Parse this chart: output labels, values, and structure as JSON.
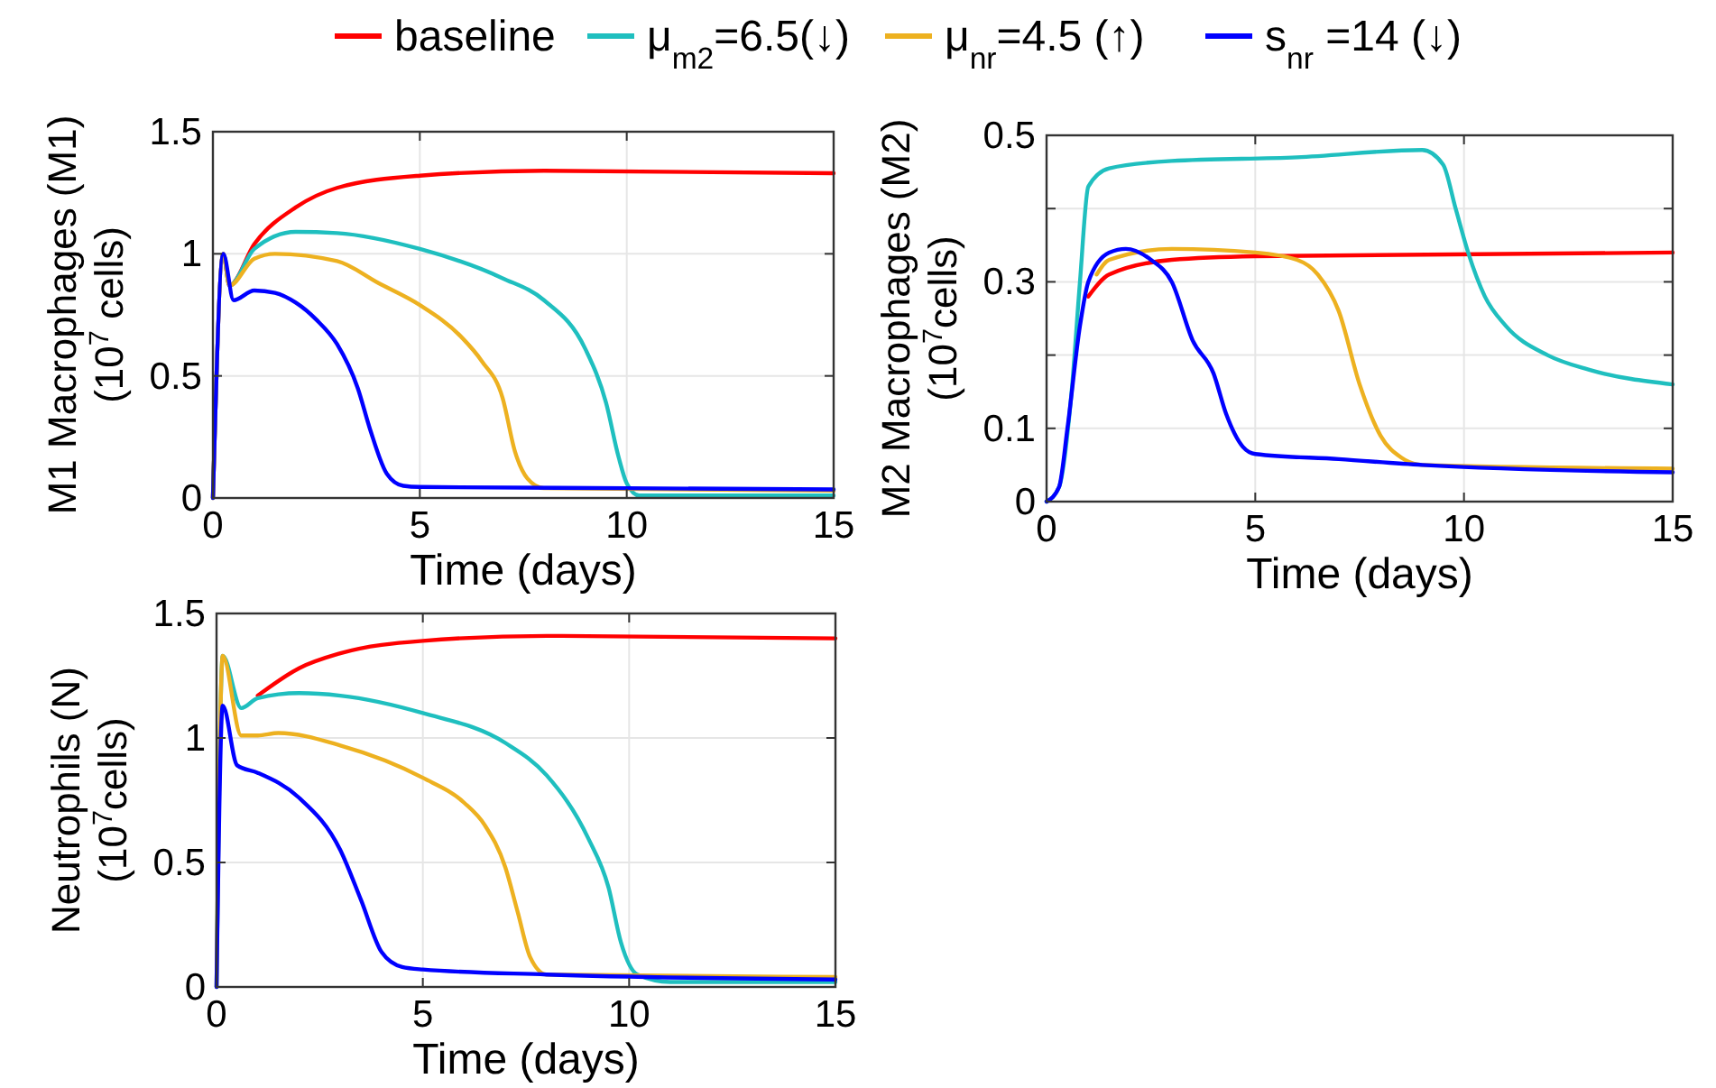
{
  "chart_data": [
    {
      "type": "line",
      "xlabel": "Time (days)",
      "ylabel": "M1 Macrophages (M1)\n(10$^{7}$ cells)",
      "xlim": [
        0,
        15
      ],
      "ylim": [
        0,
        1.5
      ],
      "xticks": [
        0,
        5,
        10,
        15
      ],
      "yticks": [
        0,
        0.5,
        1,
        1.5
      ],
      "grid": true,
      "legend": "top",
      "line_style": "solid",
      "marker": "none",
      "series": [
        {
          "name": "baseline",
          "color": "#ff0000",
          "x": [
            0,
            0.25,
            0.4,
            1,
            2,
            3,
            5,
            8,
            15
          ],
          "values": [
            0,
            1.0,
            0.87,
            1.04,
            1.19,
            1.27,
            1.32,
            1.34,
            1.33
          ]
        },
        {
          "name": "μ$_{m2}$=6.5(↓)",
          "color": "#1fbfbf",
          "x": [
            0,
            0.25,
            0.4,
            1,
            2,
            3,
            5,
            7,
            8,
            9,
            9.5,
            9.8,
            10,
            10.3,
            15
          ],
          "values": [
            0,
            1.0,
            0.87,
            1.02,
            1.09,
            1.085,
            1.02,
            0.9,
            0.81,
            0.61,
            0.39,
            0.17,
            0.06,
            0.01,
            0.01
          ]
        },
        {
          "name": "μ$_{nr}$=4.5 (↑)",
          "color": "#edb120",
          "x": [
            0,
            0.25,
            0.4,
            1,
            1.5,
            3,
            4,
            5,
            6,
            6.5,
            7,
            7.3,
            7.6,
            8,
            15
          ],
          "values": [
            0,
            1.0,
            0.87,
            0.98,
            1.0,
            0.97,
            0.88,
            0.79,
            0.66,
            0.56,
            0.41,
            0.19,
            0.08,
            0.04,
            0.03
          ]
        },
        {
          "name": "s$_{nr}$ =14 (↓)",
          "color": "#0000ff",
          "x": [
            0,
            0.25,
            0.5,
            1,
            1.5,
            2,
            2.5,
            3,
            3.5,
            3.8,
            4.2,
            4.6,
            5,
            10,
            15
          ],
          "values": [
            0,
            1.0,
            0.81,
            0.85,
            0.84,
            0.8,
            0.73,
            0.63,
            0.45,
            0.28,
            0.1,
            0.05,
            0.045,
            0.04,
            0.035
          ]
        }
      ]
    },
    {
      "type": "line",
      "xlabel": "Time (days)",
      "ylabel": "M2 Macrophages (M2)\n(10$^{7}$cells)",
      "xlim": [
        0,
        15
      ],
      "ylim": [
        0,
        0.5
      ],
      "xticks": [
        0,
        5,
        10,
        15
      ],
      "yticks": [
        0,
        0.1,
        {
          "value": 0.2,
          "label": null
        },
        0.3,
        {
          "value": 0.4,
          "label": null
        },
        0.5
      ],
      "grid": true,
      "line_style": "solid",
      "marker": "none",
      "series": [
        {
          "color": "#ff0000",
          "x": [
            1,
            1.5,
            3,
            5,
            15
          ],
          "values": [
            0.28,
            0.31,
            0.33,
            0.335,
            0.34
          ]
        },
        {
          "color": "#1fbfbf",
          "x": [
            0,
            0.3,
            0.6,
            0.8,
            1,
            1.5,
            3,
            6,
            9,
            9.5,
            9.8,
            10.1,
            10.5,
            11,
            12,
            13,
            15
          ],
          "values": [
            0,
            0.02,
            0.15,
            0.3,
            0.43,
            0.455,
            0.465,
            0.47,
            0.48,
            0.46,
            0.4,
            0.34,
            0.28,
            0.24,
            0.2,
            0.18,
            0.16
          ]
        },
        {
          "color": "#edb120",
          "x": [
            1.2,
            1.5,
            3,
            5,
            6,
            6.5,
            7,
            7.5,
            8,
            8.5,
            9,
            15
          ],
          "values": [
            0.31,
            0.33,
            0.345,
            0.34,
            0.33,
            0.31,
            0.26,
            0.16,
            0.09,
            0.06,
            0.05,
            0.045
          ]
        },
        {
          "color": "#0000ff",
          "x": [
            0,
            0.3,
            0.5,
            0.8,
            1,
            1.5,
            1.9,
            2.5,
            3,
            3.5,
            4,
            4.3,
            4.7,
            5,
            7,
            9,
            15
          ],
          "values": [
            0,
            0.02,
            0.1,
            0.24,
            0.3,
            0.34,
            0.345,
            0.33,
            0.3,
            0.22,
            0.175,
            0.12,
            0.075,
            0.065,
            0.058,
            0.05,
            0.04
          ]
        }
      ]
    },
    {
      "type": "line",
      "xlabel": "Time (days)",
      "ylabel": "Neutrophils (N)\n(10$^{7}$cells)",
      "xlim": [
        0,
        15
      ],
      "ylim": [
        0,
        1.5
      ],
      "xticks": [
        0,
        5,
        10,
        15
      ],
      "yticks": [
        0,
        0.5,
        1,
        1.5
      ],
      "grid": true,
      "line_style": "solid",
      "marker": "none",
      "series": [
        {
          "color": "#ff0000",
          "x": [
            1,
            2,
            3,
            5,
            8,
            15
          ],
          "values": [
            1.17,
            1.28,
            1.34,
            1.39,
            1.41,
            1.4
          ]
        },
        {
          "color": "#1fbfbf",
          "x": [
            0,
            0.15,
            0.6,
            1,
            2,
            3,
            5,
            7,
            8,
            9,
            9.5,
            9.8,
            10.2,
            11,
            15
          ],
          "values": [
            0,
            1.33,
            1.12,
            1.16,
            1.18,
            1.17,
            1.1,
            0.98,
            0.85,
            0.6,
            0.4,
            0.18,
            0.05,
            0.02,
            0.02
          ]
        },
        {
          "color": "#edb120",
          "x": [
            0,
            0.15,
            0.6,
            1,
            1.5,
            3,
            5,
            6,
            6.5,
            7,
            7.3,
            7.6,
            8,
            15
          ],
          "values": [
            0,
            1.33,
            1.01,
            1.01,
            1.02,
            0.97,
            0.84,
            0.74,
            0.65,
            0.48,
            0.3,
            0.12,
            0.05,
            0.04
          ]
        },
        {
          "color": "#0000ff",
          "x": [
            0,
            0.15,
            0.5,
            1,
            2,
            3,
            3.5,
            4,
            4.5,
            5,
            8,
            15
          ],
          "values": [
            0,
            1.13,
            0.89,
            0.86,
            0.76,
            0.55,
            0.35,
            0.14,
            0.08,
            0.07,
            0.05,
            0.03
          ]
        }
      ]
    }
  ]
}
